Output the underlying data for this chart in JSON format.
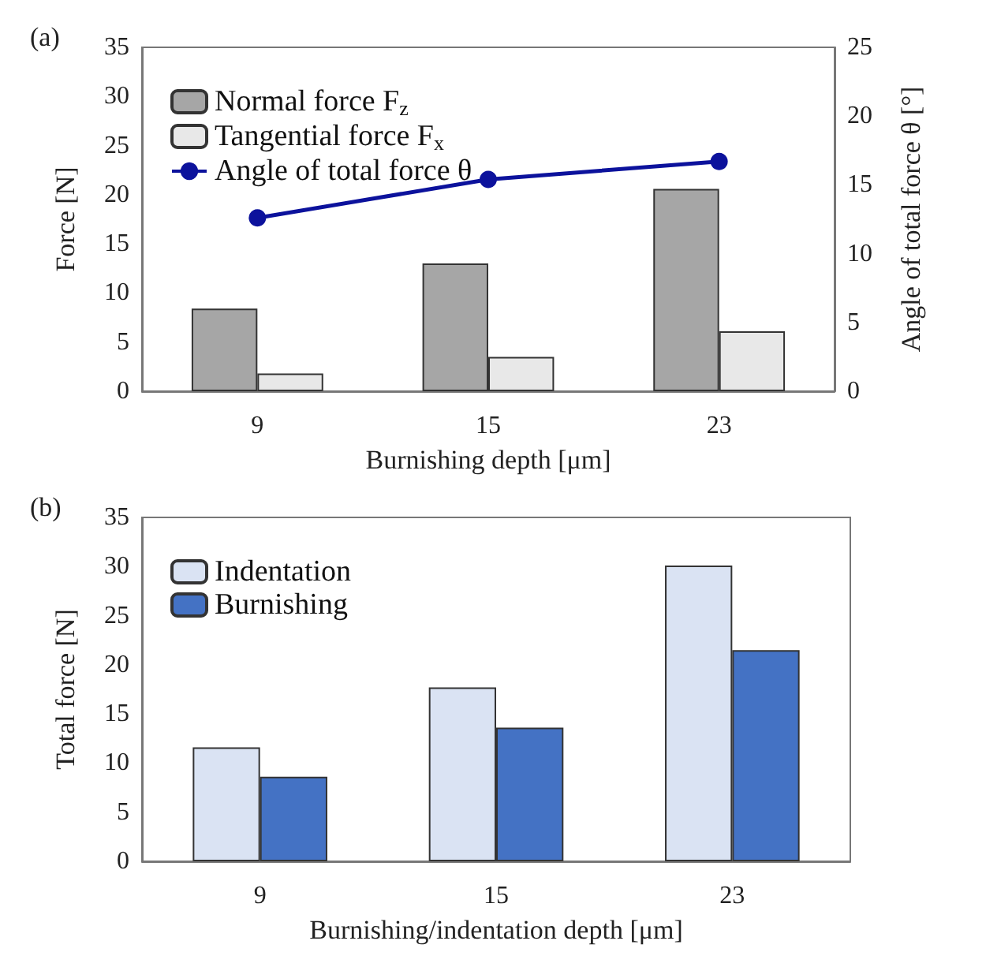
{
  "chart_data": [
    {
      "type": "bar",
      "title": "(a)",
      "categories": [
        "9",
        "15",
        "23"
      ],
      "xlabel": "Burnishing depth [μm]",
      "ylabel": "Force [N]",
      "y2label": "Angle of total force θ [°]",
      "ylim": [
        0,
        35
      ],
      "yticks": [
        0,
        5,
        10,
        15,
        20,
        25,
        30,
        35
      ],
      "y2lim": [
        0,
        25
      ],
      "y2ticks": [
        0,
        5,
        10,
        15,
        20,
        25
      ],
      "legend": "top left",
      "grid": false,
      "series": [
        {
          "name": "Normal force F$_{z}$",
          "color": "#a6a6a6",
          "values": [
            8.4,
            13.0,
            20.6
          ]
        },
        {
          "name": "Tangential force F$_{x}$",
          "color": "#e8e8e8",
          "values": [
            1.8,
            3.5,
            6.1
          ]
        },
        {
          "name": "Angle of total force θ",
          "type": "line",
          "axis": "y2",
          "color": "#0c129c",
          "marker": "circle",
          "values": [
            12.6,
            15.4,
            16.7
          ]
        }
      ]
    },
    {
      "type": "bar",
      "title": "(b)",
      "categories": [
        "9",
        "15",
        "23"
      ],
      "xlabel": "Burnishing/indentation depth [μm]",
      "ylabel": "Total force [N]",
      "ylim": [
        0,
        35
      ],
      "yticks": [
        0,
        5,
        10,
        15,
        20,
        25,
        30,
        35
      ],
      "legend": "top left",
      "grid": false,
      "series": [
        {
          "name": "Indentation",
          "color": "#dae3f3",
          "values": [
            11.6,
            17.7,
            30.1
          ]
        },
        {
          "name": "Burnishing",
          "color": "#4472c4",
          "values": [
            8.6,
            13.6,
            21.5
          ]
        }
      ]
    }
  ]
}
